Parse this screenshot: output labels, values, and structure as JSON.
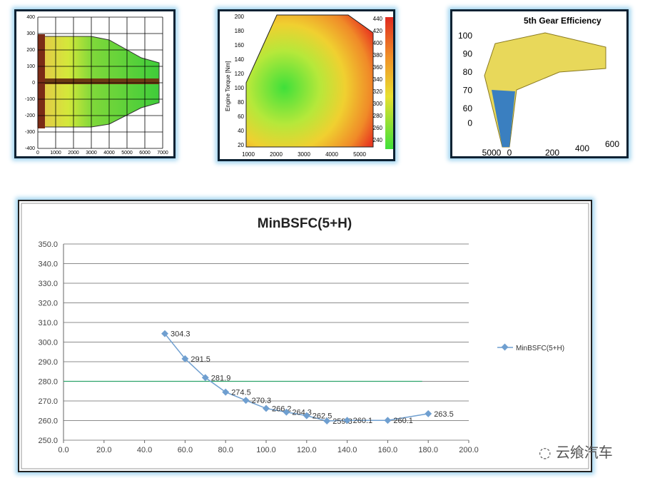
{
  "thumbnails": {
    "efficiency_map": {
      "y_ticks": [
        "400",
        "300",
        "200",
        "100",
        "0",
        "-100",
        "-200",
        "-300",
        "-400"
      ],
      "x_ticks": [
        "0",
        "1000",
        "2000",
        "3000",
        "4000",
        "5000",
        "6000",
        "7000"
      ]
    },
    "bsfc_map": {
      "ylabel": "Engine Torque [Nm]",
      "y_ticks": [
        "200",
        "180",
        "160",
        "140",
        "120",
        "100",
        "80",
        "60",
        "40",
        "20"
      ],
      "x_ticks": [
        "1000",
        "2000",
        "3000",
        "4000",
        "5000"
      ],
      "colorbar_ticks": [
        "440",
        "420",
        "400",
        "380",
        "360",
        "340",
        "320",
        "300",
        "280",
        "260",
        "240"
      ]
    },
    "gear_efficiency": {
      "title": "5th Gear Efficiency",
      "z_ticks": [
        "100",
        "90",
        "80",
        "70",
        "60",
        "0"
      ],
      "x_ticks": [
        "5000",
        "0"
      ],
      "y_ticks": [
        "200",
        "400",
        "600"
      ]
    }
  },
  "chart_data": {
    "type": "line",
    "title": "MinBSFC(5+H)",
    "xlabel": "",
    "ylabel": "",
    "x": [
      50,
      60,
      70,
      80,
      90,
      100,
      110,
      120,
      130,
      140,
      160,
      180
    ],
    "series": [
      {
        "name": "MinBSFC(5+H)",
        "values": [
          304.3,
          291.5,
          281.9,
          274.5,
          270.3,
          266.2,
          264.3,
          262.5,
          259.8,
          260.1,
          260.1,
          263.5
        ],
        "labels": [
          "304.3",
          "291.5",
          "281.9",
          "274.5",
          "270.3",
          "266.2",
          "264.3",
          "262.5",
          "259.8",
          "260.1",
          "260.1",
          "263.5"
        ],
        "color": "#6f9fd0"
      }
    ],
    "reference_line": {
      "y": 280,
      "x_range": [
        0,
        177
      ],
      "color": "#2ea36a"
    },
    "xlim": [
      0,
      200
    ],
    "ylim": [
      250,
      350
    ],
    "x_ticks": [
      "0.0",
      "20.0",
      "40.0",
      "60.0",
      "80.0",
      "100.0",
      "120.0",
      "140.0",
      "160.0",
      "180.0",
      "200.0"
    ],
    "y_ticks": [
      "350.0",
      "340.0",
      "330.0",
      "320.0",
      "310.0",
      "300.0",
      "290.0",
      "280.0",
      "270.0",
      "260.0",
      "250.0"
    ],
    "legend_position": "right",
    "grid": true
  },
  "watermark": "云飨汽车"
}
